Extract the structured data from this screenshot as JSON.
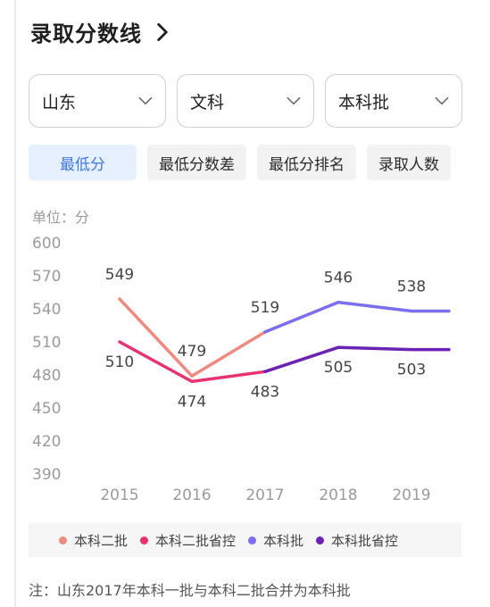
{
  "header": {
    "title": "录取分数线"
  },
  "filters": [
    {
      "label": "山东"
    },
    {
      "label": "文科"
    },
    {
      "label": "本科批"
    }
  ],
  "tabs": [
    {
      "label": "最低分",
      "active": true
    },
    {
      "label": "最低分数差"
    },
    {
      "label": "最低分排名"
    },
    {
      "label": "录取人数"
    }
  ],
  "unit_label": "单位：分",
  "chart_data": {
    "type": "line",
    "x": [
      "2015",
      "2016",
      "2017",
      "2018",
      "2019"
    ],
    "y_ticks": [
      600,
      570,
      540,
      510,
      480,
      450,
      420,
      390
    ],
    "ylim": [
      390,
      600
    ],
    "series": [
      {
        "name": "本科二批",
        "color": "#f08a80",
        "values": [
          549,
          479,
          519,
          null,
          null
        ]
      },
      {
        "name": "本科二批省控",
        "color": "#e8336e",
        "values": [
          510,
          474,
          483,
          null,
          null
        ]
      },
      {
        "name": "本科批",
        "color": "#7b6ff0",
        "values": [
          null,
          null,
          519,
          546,
          538
        ]
      },
      {
        "name": "本科批省控",
        "color": "#6b23b3",
        "values": [
          null,
          null,
          483,
          505,
          503
        ]
      }
    ],
    "data_labels": [
      {
        "x": "2015",
        "value": 549,
        "pos": "above"
      },
      {
        "x": "2015",
        "value": 510,
        "pos": "below"
      },
      {
        "x": "2016",
        "value": 479,
        "pos": "above"
      },
      {
        "x": "2016",
        "value": 474,
        "pos": "below"
      },
      {
        "x": "2017",
        "value": 519,
        "pos": "above"
      },
      {
        "x": "2017",
        "value": 483,
        "pos": "below"
      },
      {
        "x": "2018",
        "value": 546,
        "pos": "above"
      },
      {
        "x": "2018",
        "value": 505,
        "pos": "below"
      },
      {
        "x": "2019",
        "value": 538,
        "pos": "above"
      },
      {
        "x": "2019",
        "value": 503,
        "pos": "below"
      }
    ],
    "legend": [
      "本科二批",
      "本科二批省控",
      "本科批",
      "本科批省控"
    ]
  },
  "note": "注：山东2017年本科一批与本科二批合并为本科批"
}
